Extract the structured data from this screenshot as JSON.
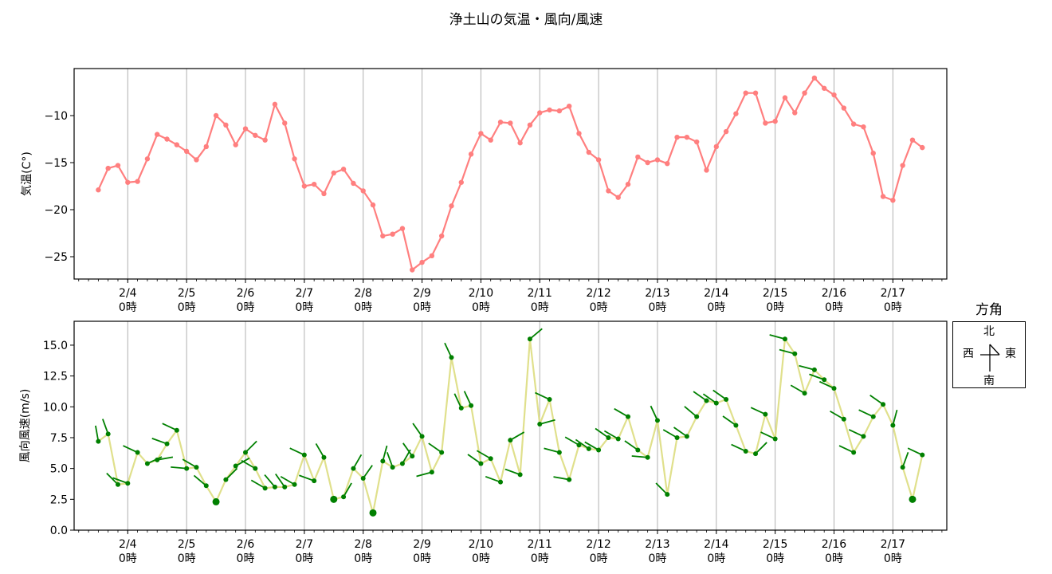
{
  "title": "浄土山の気温・風向/風速",
  "legend": {
    "title": "方角",
    "north": "北",
    "south": "南",
    "east": "東",
    "west": "西"
  },
  "colors": {
    "temperature_line": "#ff7f7f",
    "wind_line": "#e0e08c",
    "wind_marker": "#008000",
    "grid": "#b0b0b0"
  },
  "chart_data": [
    {
      "type": "line",
      "title": "浄土山の気温・風向/風速",
      "xlabel": "",
      "ylabel": "気温(C°)",
      "ylim": [
        -27.3,
        -5.0
      ],
      "yticks": [
        -10,
        -15,
        -20,
        -25
      ],
      "ytick_labels": [
        "−10",
        "−15",
        "−20",
        "−25"
      ],
      "xtick_labels": [
        "2/4\n0時",
        "2/5\n0時",
        "2/6\n0時",
        "2/7\n0時",
        "2/8\n0時",
        "2/9\n0時",
        "2/10\n0時",
        "2/11\n0時",
        "2/12\n0時",
        "2/13\n0時",
        "2/14\n0時",
        "2/15\n0時",
        "2/16\n0時",
        "2/17\n0時"
      ],
      "grid": "x-major",
      "x_start": "2/3 12時",
      "x_interval_hours": 4,
      "series": [
        {
          "name": "気温",
          "values": [
            -17.9,
            -15.6,
            -15.3,
            -17.1,
            -17.0,
            -14.6,
            -12.0,
            -12.5,
            -13.1,
            -13.8,
            -14.7,
            -13.3,
            -10.0,
            -11.0,
            -13.1,
            -11.4,
            -12.1,
            -12.6,
            -8.8,
            -10.8,
            -14.6,
            -17.5,
            -17.3,
            -18.3,
            -16.1,
            -15.7,
            -17.2,
            -18.0,
            -19.5,
            -22.8,
            -22.6,
            -22.0,
            -26.4,
            -25.6,
            -24.9,
            -22.8,
            -19.6,
            -17.1,
            -14.1,
            -11.9,
            -12.6,
            -10.7,
            -10.8,
            -12.9,
            -11.0,
            -9.7,
            -9.4,
            -9.5,
            -9.0,
            -11.9,
            -13.9,
            -14.7,
            -18.0,
            -18.7,
            -17.3,
            -14.4,
            -15.0,
            -14.7,
            -15.1,
            -12.3,
            -12.3,
            -12.8,
            -15.8,
            -13.3,
            -11.7,
            -9.8,
            -7.6,
            -7.6,
            -10.8,
            -10.6,
            -8.1,
            -9.7,
            -7.6,
            -6.0,
            -7.1,
            -7.8,
            -9.2,
            -10.9,
            -11.2,
            -14.0,
            -18.6,
            -19.0,
            -15.3,
            -12.6,
            -13.4
          ]
        }
      ]
    },
    {
      "type": "line",
      "title": "",
      "xlabel": "",
      "ylabel": "風向風速(m/s)",
      "ylim": [
        0.0,
        16.9
      ],
      "yticks": [
        0.0,
        2.5,
        5.0,
        7.5,
        10.0,
        12.5,
        15.0
      ],
      "ytick_labels": [
        "0.0",
        "2.5",
        "5.0",
        "7.5",
        "10.0",
        "12.5",
        "15.0"
      ],
      "xtick_labels": [
        "2/4\n0時",
        "2/5\n0時",
        "2/6\n0時",
        "2/7\n0時",
        "2/8\n0時",
        "2/9\n0時",
        "2/10\n0時",
        "2/11\n0時",
        "2/12\n0時",
        "2/13\n0時",
        "2/14\n0時",
        "2/15\n0時",
        "2/16\n0時",
        "2/17\n0時"
      ],
      "grid": "x-major",
      "x_start": "2/3 12時",
      "x_interval_hours": 4,
      "series": [
        {
          "name": "風速",
          "values": [
            7.2,
            7.8,
            3.7,
            3.8,
            6.3,
            5.4,
            5.7,
            7.0,
            8.1,
            5.0,
            5.1,
            3.6,
            2.3,
            4.1,
            5.2,
            6.3,
            5.0,
            3.4,
            3.5,
            3.5,
            3.7,
            6.1,
            4.0,
            5.9,
            2.5,
            2.7,
            5.0,
            4.2,
            1.4,
            5.6,
            5.1,
            5.4,
            6.0,
            7.6,
            4.7,
            6.3,
            14.0,
            9.9,
            10.1,
            5.4,
            5.8,
            3.9,
            7.3,
            4.5,
            15.5,
            8.6,
            10.6,
            6.3,
            4.1,
            6.9,
            6.6,
            6.5,
            7.5,
            7.4,
            9.2,
            6.5,
            5.9,
            8.9,
            2.9,
            7.5,
            7.6,
            9.2,
            10.5,
            10.3,
            10.6,
            8.5,
            6.4,
            6.2,
            9.4,
            7.4,
            15.5,
            14.3,
            11.1,
            13.0,
            12.2,
            11.5,
            9.0,
            6.3,
            7.6,
            9.2,
            10.2,
            8.5,
            5.1,
            2.5,
            6.1
          ]
        },
        {
          "name": "風向(deg, 0=北, 時計回り; null=静穏)",
          "values": [
            350,
            340,
            315,
            290,
            295,
            65,
            80,
            290,
            295,
            275,
            300,
            310,
            null,
            45,
            60,
            45,
            300,
            300,
            320,
            325,
            300,
            295,
            290,
            330,
            null,
            30,
            30,
            35,
            null,
            15,
            340,
            30,
            325,
            325,
            255,
            305,
            335,
            335,
            335,
            305,
            300,
            290,
            60,
            290,
            50,
            75,
            295,
            285,
            280,
            300,
            305,
            300,
            305,
            300,
            300,
            305,
            275,
            335,
            315,
            300,
            305,
            310,
            305,
            305,
            305,
            305,
            295,
            45,
            295,
            295,
            285,
            285,
            300,
            285,
            290,
            295,
            300,
            295,
            295,
            295,
            305,
            15,
            20,
            null,
            295
          ]
        }
      ]
    }
  ]
}
